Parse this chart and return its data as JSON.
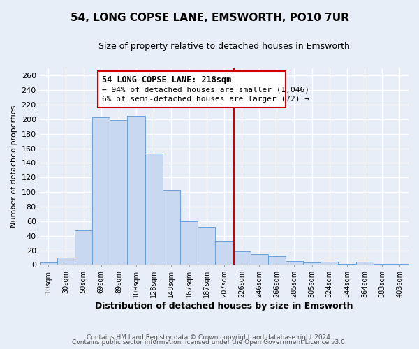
{
  "title": "54, LONG COPSE LANE, EMSWORTH, PO10 7UR",
  "subtitle": "Size of property relative to detached houses in Emsworth",
  "xlabel": "Distribution of detached houses by size in Emsworth",
  "ylabel": "Number of detached properties",
  "bar_color": "#c8d8f0",
  "bar_edge_color": "#6a9fd8",
  "categories": [
    "10sqm",
    "30sqm",
    "50sqm",
    "69sqm",
    "89sqm",
    "109sqm",
    "128sqm",
    "148sqm",
    "167sqm",
    "187sqm",
    "207sqm",
    "226sqm",
    "246sqm",
    "266sqm",
    "285sqm",
    "305sqm",
    "324sqm",
    "344sqm",
    "364sqm",
    "383sqm",
    "403sqm"
  ],
  "values": [
    3,
    10,
    47,
    203,
    199,
    205,
    153,
    103,
    60,
    52,
    33,
    19,
    15,
    12,
    5,
    3,
    4,
    1,
    4,
    1,
    1
  ],
  "ylim": [
    0,
    270
  ],
  "yticks": [
    0,
    20,
    40,
    60,
    80,
    100,
    120,
    140,
    160,
    180,
    200,
    220,
    240,
    260
  ],
  "property_line_label": "54 LONG COPSE LANE: 218sqm",
  "annotation_line1": "← 94% of detached houses are smaller (1,046)",
  "annotation_line2": "6% of semi-detached houses are larger (72) →",
  "box_color": "#ffffff",
  "box_edge_color": "#cc0000",
  "vline_color": "#cc0000",
  "footer_line1": "Contains HM Land Registry data © Crown copyright and database right 2024.",
  "footer_line2": "Contains public sector information licensed under the Open Government Licence v3.0.",
  "background_color": "#e8eef8",
  "grid_color": "#ffffff",
  "spine_color": "#aaaaaa"
}
